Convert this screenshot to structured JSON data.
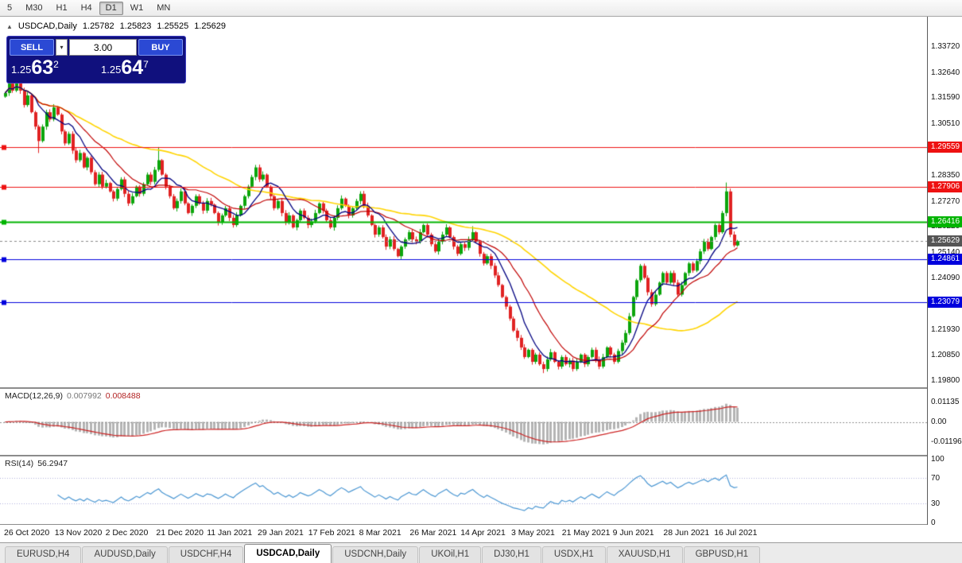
{
  "toolbar": {
    "timeframes": [
      {
        "label": "5",
        "active": false
      },
      {
        "label": "M30",
        "active": false
      },
      {
        "label": "H1",
        "active": false
      },
      {
        "label": "H4",
        "active": false
      },
      {
        "label": "D1",
        "active": true
      },
      {
        "label": "W1",
        "active": false
      },
      {
        "label": "MN",
        "active": false
      }
    ]
  },
  "chart": {
    "symbol_line": {
      "collapse_icon": "▲",
      "symbol": "USDCAD,Daily",
      "open": "1.25782",
      "high": "1.25823",
      "low": "1.25525",
      "close": "1.25629"
    },
    "trade_panel": {
      "sell_label": "SELL",
      "buy_label": "BUY",
      "volume": "3.00",
      "dropdown_icon": "▾",
      "sell_price": {
        "big": "1.25",
        "pips": "63",
        "frac": "2"
      },
      "buy_price": {
        "big": "1.25",
        "pips": "64",
        "frac": "7"
      }
    }
  },
  "price_axis": {
    "labels": [
      {
        "text": "1.33720",
        "value": 1.3372
      },
      {
        "text": "1.32640",
        "value": 1.3264
      },
      {
        "text": "1.31590",
        "value": 1.3159
      },
      {
        "text": "1.30510",
        "value": 1.3051
      },
      {
        "text": "1.28350",
        "value": 1.2835
      },
      {
        "text": "1.27270",
        "value": 1.2727
      },
      {
        "text": "1.26220",
        "value": 1.2622
      },
      {
        "text": "1.25140",
        "value": 1.2514
      },
      {
        "text": "1.24090",
        "value": 1.2409
      },
      {
        "text": "1.21930",
        "value": 1.2193
      },
      {
        "text": "1.20850",
        "value": 1.2085
      },
      {
        "text": "1.19800",
        "value": 1.198
      }
    ],
    "badges": [
      {
        "text": "1.29559",
        "value": 1.29559,
        "color": "#ee1111"
      },
      {
        "text": "1.27906",
        "value": 1.27906,
        "color": "#ee1111"
      },
      {
        "text": "1.26416",
        "value": 1.26416,
        "color": "#00b400"
      },
      {
        "text": "1.25629",
        "value": 1.25629,
        "color": "#555555"
      },
      {
        "text": "1.24861",
        "value": 1.24861,
        "color": "#0000dd"
      },
      {
        "text": "1.23079",
        "value": 1.23079,
        "color": "#0000dd"
      }
    ]
  },
  "date_axis": {
    "labels": [
      "26 Oct 2020",
      "13 Nov 2020",
      "2 Dec 2020",
      "21 Dec 2020",
      "11 Jan 2021",
      "29 Jan 2021",
      "17 Feb 2021",
      "8 Mar 2021",
      "26 Mar 2021",
      "14 Apr 2021",
      "3 May 2021",
      "21 May 2021",
      "9 Jun 2021",
      "28 Jun 2021",
      "16 Jul 2021"
    ]
  },
  "macd_panel": {
    "label": "MACD(12,26,9)",
    "value_main": "0.007992",
    "value_signal": "0.008488",
    "axis": [
      {
        "text": "0.01135",
        "value": 0.01135
      },
      {
        "text": "0.00",
        "value": 0
      },
      {
        "text": "-0.01196",
        "value": -0.01196
      }
    ]
  },
  "rsi_panel": {
    "label": "RSI(14)",
    "value": "56.2947",
    "axis": [
      {
        "text": "100",
        "value": 100
      },
      {
        "text": "70",
        "value": 70
      },
      {
        "text": "30",
        "value": 30
      },
      {
        "text": "0",
        "value": 0
      }
    ],
    "levels": [
      70,
      30
    ]
  },
  "bottom_tabs": [
    {
      "label": "EURUSD,H4",
      "active": false
    },
    {
      "label": "AUDUSD,Daily",
      "active": false
    },
    {
      "label": "USDCHF,H4",
      "active": false
    },
    {
      "label": "USDCAD,Daily",
      "active": true
    },
    {
      "label": "USDCNH,Daily",
      "active": false
    },
    {
      "label": "UKOil,H1",
      "active": false
    },
    {
      "label": "DJ30,H1",
      "active": false
    },
    {
      "label": "USDX,H1",
      "active": false
    },
    {
      "label": "XAUUSD,H1",
      "active": false
    },
    {
      "label": "GBPUSD,H1",
      "active": false
    }
  ],
  "chart_data": {
    "type": "candlestick",
    "symbol": "USDCAD",
    "timeframe": "Daily",
    "price_range": {
      "min": 1.1954,
      "max": 1.3498
    },
    "current_price": {
      "value": 1.25629,
      "color": "#888888"
    },
    "colors": {
      "up": "#0ca50c",
      "down": "#e02222",
      "macd_hist": "#b4b4b4",
      "macd_signal": "#cc2222",
      "rsi_line": "#4a96d2"
    },
    "closes": [
      1.318,
      1.322,
      1.319,
      1.3235,
      1.319,
      1.313,
      1.317,
      1.31,
      1.304,
      1.298,
      1.304,
      1.31,
      1.307,
      1.312,
      1.309,
      1.302,
      1.297,
      1.301,
      1.294,
      1.29,
      1.293,
      1.287,
      1.291,
      1.285,
      1.28,
      1.284,
      1.279,
      1.2805,
      1.277,
      1.274,
      1.278,
      1.282,
      1.276,
      1.272,
      1.275,
      1.279,
      1.276,
      1.28,
      1.284,
      1.281,
      1.286,
      1.29,
      1.284,
      1.279,
      1.275,
      1.27,
      1.273,
      1.277,
      1.272,
      1.268,
      1.271,
      1.275,
      1.272,
      1.269,
      1.273,
      1.2715,
      1.268,
      1.264,
      1.267,
      1.27,
      1.266,
      1.263,
      1.267,
      1.271,
      1.275,
      1.279,
      1.283,
      1.287,
      1.282,
      1.284,
      1.279,
      1.275,
      1.27,
      1.273,
      1.268,
      1.264,
      1.267,
      1.262,
      1.265,
      1.269,
      1.266,
      1.263,
      1.2645,
      1.268,
      1.272,
      1.269,
      1.265,
      1.262,
      1.266,
      1.27,
      1.274,
      1.271,
      1.267,
      1.27,
      1.273,
      1.276,
      1.271,
      1.267,
      1.263,
      1.259,
      1.262,
      1.258,
      1.254,
      1.257,
      1.253,
      1.25,
      1.254,
      1.257,
      1.26,
      1.257,
      1.256,
      1.26,
      1.263,
      1.259,
      1.255,
      1.252,
      1.256,
      1.259,
      1.262,
      1.258,
      1.254,
      1.251,
      1.255,
      1.2535,
      1.257,
      1.26,
      1.256,
      1.251,
      1.247,
      1.25,
      1.246,
      1.242,
      1.238,
      1.233,
      1.229,
      1.224,
      1.219,
      1.216,
      1.212,
      1.208,
      1.211,
      1.206,
      1.209,
      1.205,
      1.203,
      1.207,
      1.21,
      1.206,
      1.204,
      1.208,
      1.205,
      1.2065,
      1.203,
      1.206,
      1.209,
      1.205,
      1.208,
      1.211,
      1.207,
      1.204,
      1.208,
      1.212,
      1.209,
      1.206,
      1.2105,
      1.214,
      1.218,
      1.225,
      1.233,
      1.24,
      1.246,
      1.241,
      1.235,
      1.23,
      1.234,
      1.239,
      1.243,
      1.239,
      1.243,
      1.239,
      1.234,
      1.238,
      1.243,
      1.247,
      1.244,
      1.248,
      1.252,
      1.256,
      1.253,
      1.258,
      1.263,
      1.26,
      1.268,
      1.277,
      1.259,
      1.2545,
      1.2563
    ],
    "wick_overrides": {
      "3": {
        "high": 1.3245
      },
      "9": {
        "low": 1.293
      },
      "41": {
        "high": 1.2955
      },
      "125": {
        "high": 1.2625
      },
      "144": {
        "low": 1.2013
      },
      "193": {
        "high": 1.2807
      }
    },
    "moving_averages": [
      {
        "period": 50,
        "color": "#ffd400",
        "width": 1.6
      },
      {
        "period": 17,
        "color": "#c00000",
        "width": 1.2
      },
      {
        "period": 8,
        "color": "#000080",
        "width": 1.3
      }
    ],
    "horizontal_lines": [
      {
        "value": 1.29559,
        "color": "#ee1111",
        "width": 1,
        "anchor": true
      },
      {
        "value": 1.27906,
        "color": "#ee1111",
        "width": 1,
        "anchor": true
      },
      {
        "value": 1.26416,
        "color": "#00b400",
        "width": 2,
        "anchor": true
      },
      {
        "value": 1.24861,
        "color": "#0000dd",
        "width": 1,
        "anchor": true
      },
      {
        "value": 1.23079,
        "color": "#0000dd",
        "width": 1,
        "anchor": true
      }
    ],
    "macd": {
      "fast": 12,
      "slow": 26,
      "signal": 9,
      "scale_max": 0.0185
    },
    "rsi": {
      "period": 14
    }
  }
}
